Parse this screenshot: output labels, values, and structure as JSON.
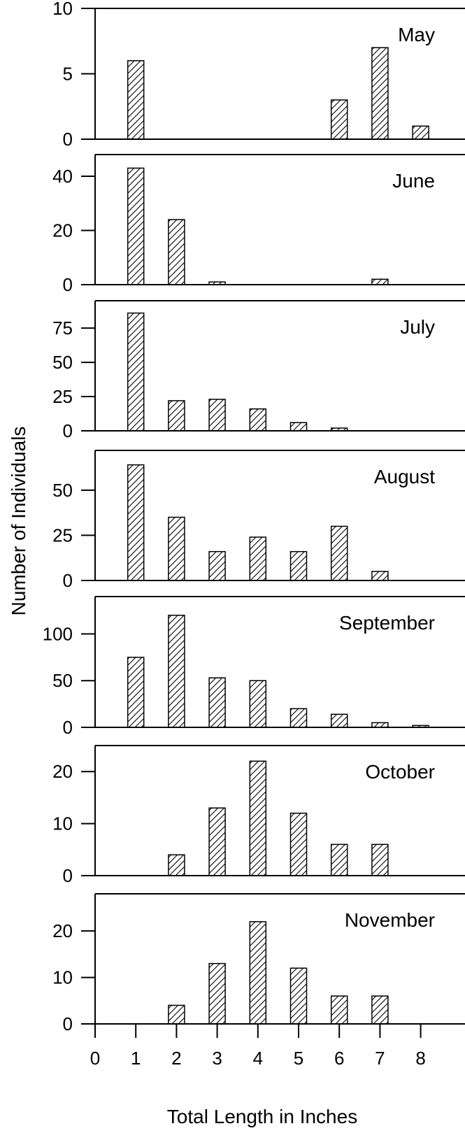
{
  "chart_data": {
    "type": "bar",
    "xlabel": "Total Length in Inches",
    "ylabel": "Number of Individuals",
    "x_ticks": [
      0,
      1,
      2,
      3,
      4,
      5,
      6,
      7,
      8
    ],
    "xlim": [
      0,
      8.6
    ],
    "fill_pattern": "diagonal-hatch",
    "panels": [
      {
        "name": "May",
        "ylim": [
          0,
          10
        ],
        "yticks": [
          0,
          5,
          10
        ],
        "x": [
          1,
          6,
          7,
          8
        ],
        "values": [
          6,
          3,
          7,
          1
        ]
      },
      {
        "name": "June",
        "ylim": [
          0,
          48
        ],
        "yticks": [
          0,
          20,
          40
        ],
        "x": [
          1,
          2,
          3,
          7
        ],
        "values": [
          43,
          24,
          1,
          2
        ]
      },
      {
        "name": "July",
        "ylim": [
          0,
          95
        ],
        "yticks": [
          0,
          25,
          50,
          75
        ],
        "x": [
          1,
          2,
          3,
          4,
          5,
          6
        ],
        "values": [
          86,
          22,
          23,
          16,
          6,
          2
        ]
      },
      {
        "name": "August",
        "ylim": [
          0,
          72
        ],
        "yticks": [
          0,
          25,
          50
        ],
        "x": [
          1,
          2,
          3,
          4,
          5,
          6,
          7
        ],
        "values": [
          64,
          35,
          16,
          24,
          16,
          30,
          5
        ]
      },
      {
        "name": "September",
        "ylim": [
          0,
          140
        ],
        "yticks": [
          0,
          50,
          100
        ],
        "x": [
          1,
          2,
          3,
          4,
          5,
          6,
          7,
          8
        ],
        "values": [
          75,
          120,
          53,
          50,
          20,
          14,
          5,
          2
        ]
      },
      {
        "name": "October",
        "ylim": [
          0,
          25
        ],
        "yticks": [
          0,
          10,
          20
        ],
        "x": [
          2,
          3,
          4,
          5,
          6,
          7
        ],
        "values": [
          4,
          13,
          22,
          12,
          6,
          6
        ]
      },
      {
        "name": "November",
        "ylim": [
          0,
          28
        ],
        "yticks": [
          0,
          10,
          20
        ],
        "x": [
          2,
          3,
          4,
          5,
          6,
          7
        ],
        "values": [
          4,
          13,
          22,
          12,
          6,
          6
        ]
      }
    ]
  }
}
